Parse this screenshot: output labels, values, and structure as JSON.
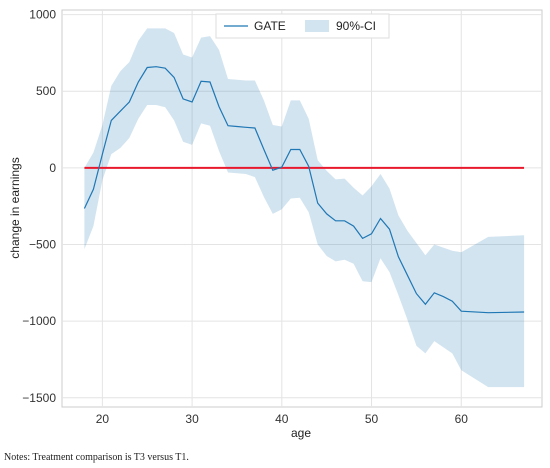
{
  "chart_data": {
    "type": "line",
    "xlabel": "age",
    "ylabel": "change in earnings",
    "xlim": [
      15.5,
      69
    ],
    "ylim": [
      -1560,
      1030
    ],
    "xticks": [
      20,
      30,
      40,
      50,
      60
    ],
    "yticks": [
      -1500,
      -1000,
      -500,
      0,
      500,
      1000
    ],
    "grid": true,
    "legend_position": "top-center",
    "reference_line": {
      "y": 0,
      "color": "#e8192c"
    },
    "series": [
      {
        "name": "GATE",
        "color": "#1f77b4",
        "x": [
          18,
          19,
          20,
          21,
          22,
          23,
          24,
          25,
          26,
          27,
          28,
          29,
          30,
          31,
          32,
          33,
          34,
          35,
          36,
          37,
          38,
          39,
          40,
          41,
          42,
          43,
          44,
          45,
          46,
          47,
          48,
          49,
          50,
          51,
          52,
          53,
          54,
          55,
          56,
          57,
          58,
          59,
          60,
          63,
          67
        ],
        "y": [
          -265,
          -140,
          90,
          310,
          370,
          430,
          560,
          655,
          660,
          650,
          590,
          450,
          430,
          565,
          560,
          400,
          275,
          270,
          265,
          260,
          120,
          -15,
          5,
          120,
          120,
          10,
          -230,
          -300,
          -345,
          -345,
          -380,
          -460,
          -430,
          -330,
          -400,
          -580,
          -700,
          -820,
          -890,
          -815,
          -840,
          -870,
          -935,
          -945,
          -940
        ]
      },
      {
        "name": "90%-CI",
        "color": "#1f77b4",
        "x": [
          18,
          19,
          20,
          21,
          22,
          23,
          24,
          25,
          26,
          27,
          28,
          29,
          30,
          31,
          32,
          33,
          34,
          35,
          36,
          37,
          38,
          39,
          40,
          41,
          42,
          43,
          44,
          45,
          46,
          47,
          48,
          49,
          50,
          51,
          52,
          53,
          54,
          55,
          56,
          57,
          58,
          59,
          60,
          63,
          67
        ],
        "lower": [
          -530,
          -380,
          -80,
          90,
          130,
          195,
          320,
          410,
          410,
          395,
          310,
          170,
          150,
          290,
          275,
          110,
          -30,
          -35,
          -40,
          -60,
          -190,
          -300,
          -270,
          -200,
          -195,
          -290,
          -500,
          -575,
          -610,
          -600,
          -625,
          -740,
          -745,
          -590,
          -680,
          -830,
          -990,
          -1160,
          -1210,
          -1130,
          -1170,
          -1210,
          -1320,
          -1430,
          -1430
        ],
        "upper": [
          0,
          100,
          280,
          535,
          630,
          690,
          830,
          910,
          910,
          910,
          880,
          740,
          720,
          850,
          860,
          770,
          580,
          575,
          570,
          570,
          440,
          280,
          270,
          440,
          440,
          320,
          50,
          -20,
          -75,
          -70,
          -130,
          -180,
          -120,
          -40,
          -135,
          -310,
          -410,
          -490,
          -570,
          -500,
          -520,
          -540,
          -550,
          -450,
          -440
        ]
      }
    ]
  },
  "notes": "Notes: Treatment comparison is T3 versus T1."
}
